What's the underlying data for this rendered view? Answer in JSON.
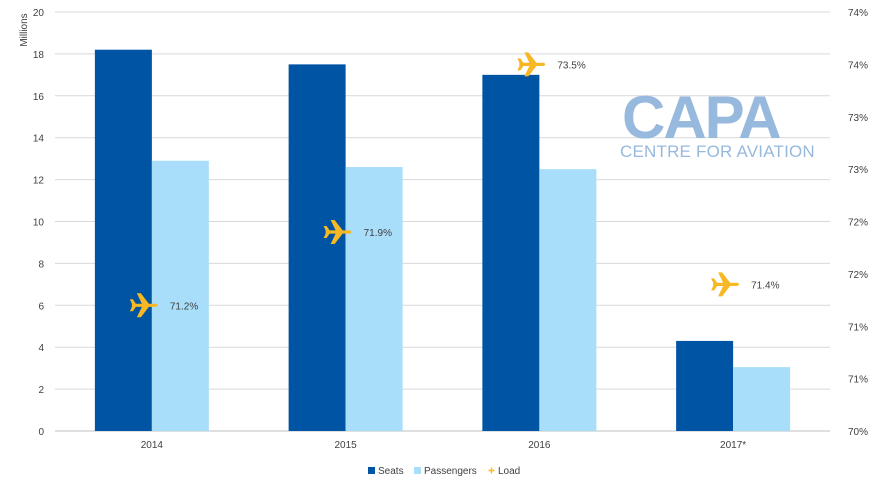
{
  "chart_data": {
    "type": "bar",
    "categories": [
      "2014",
      "2015",
      "2016",
      "2017*"
    ],
    "series": [
      {
        "name": "Seats",
        "axis": "left",
        "kind": "bar",
        "color": "#0054a4",
        "values": [
          18.2,
          17.5,
          17.0,
          4.3
        ]
      },
      {
        "name": "Passengers",
        "axis": "left",
        "kind": "bar",
        "color": "#a9defa",
        "values": [
          12.9,
          12.6,
          12.5,
          3.05
        ]
      },
      {
        "name": "Load",
        "axis": "right",
        "kind": "marker",
        "marker_icon": "airplane-icon",
        "color": "#f8b823",
        "values": [
          71.2,
          71.9,
          73.5,
          71.4
        ],
        "labels": [
          "71.2%",
          "71.9%",
          "73.5%",
          "71.4%"
        ]
      }
    ],
    "ylabel": "Millions",
    "ylim": [
      0,
      20
    ],
    "yticks": [
      "0",
      "2",
      "4",
      "6",
      "8",
      "10",
      "12",
      "14",
      "16",
      "18",
      "20"
    ],
    "y2lim": [
      70,
      74
    ],
    "y2ticks": [
      "70%",
      "71%",
      "71%",
      "72%",
      "72%",
      "73%",
      "73%",
      "74%",
      "74%"
    ],
    "grid": true,
    "legend_position": "bottom-center"
  },
  "watermark": {
    "title": "CAPA",
    "subtitle": "CENTRE FOR AVIATION"
  }
}
